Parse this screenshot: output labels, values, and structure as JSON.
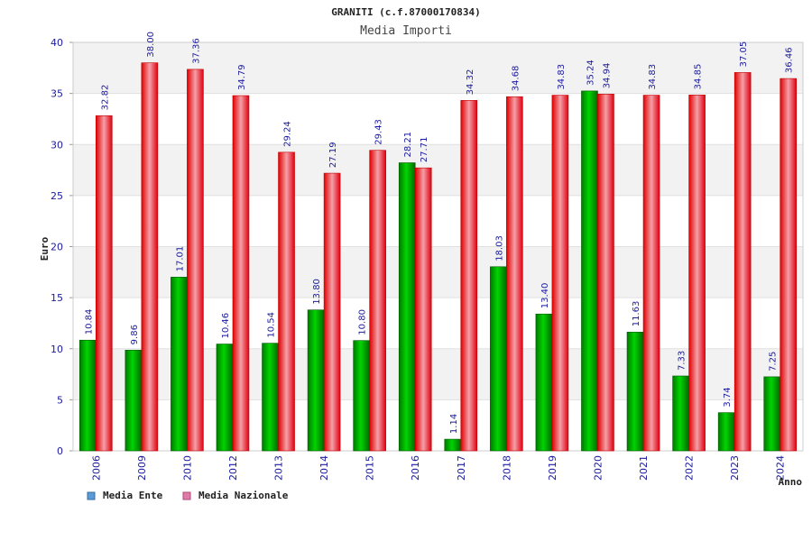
{
  "chart_data": {
    "type": "bar",
    "title": "GRANITI (c.f.87000170834)",
    "subtitle": "Media Importi",
    "xlabel": "Anno",
    "ylabel": "Euro",
    "ylim": [
      0,
      40
    ],
    "yticks": [
      0,
      5,
      10,
      15,
      20,
      25,
      30,
      35,
      40
    ],
    "categories": [
      "2006",
      "2009",
      "2010",
      "2012",
      "2013",
      "2014",
      "2015",
      "2016",
      "2017",
      "2018",
      "2019",
      "2020",
      "2021",
      "2022",
      "2023",
      "2024"
    ],
    "series": [
      {
        "name": "Media Ente",
        "color": "#00c000",
        "values": [
          10.84,
          9.86,
          17.01,
          10.46,
          10.54,
          13.8,
          10.8,
          28.21,
          1.14,
          18.03,
          13.4,
          35.24,
          11.63,
          7.33,
          3.74,
          7.25
        ],
        "labels": [
          "10.84",
          "9.86",
          "17.01",
          "10.46",
          "10.54",
          "13.80",
          "10.80",
          "28.21",
          "1.14",
          "18.03",
          "13.40",
          "35.24",
          "11.63",
          "7.33",
          "3.74",
          "7.25"
        ]
      },
      {
        "name": "Media Nazionale",
        "color": "#ff2020",
        "values": [
          32.82,
          38.0,
          37.36,
          34.79,
          29.24,
          27.19,
          29.43,
          27.71,
          34.32,
          34.68,
          34.83,
          34.94,
          34.83,
          34.85,
          37.05,
          36.46
        ],
        "labels": [
          "32.82",
          "38.00",
          "37.36",
          "34.79",
          "29.24",
          "27.19",
          "29.43",
          "27.71",
          "34.32",
          "34.68",
          "34.83",
          "34.94",
          "34.83",
          "34.85",
          "37.05",
          "36.46"
        ]
      }
    ],
    "legend": [
      {
        "name": "Media Ente",
        "color": "#5b9bd5"
      },
      {
        "name": "Media Nazionale",
        "color": "#e07aa8"
      }
    ],
    "legend_position": "bottom-left",
    "grid": true
  }
}
